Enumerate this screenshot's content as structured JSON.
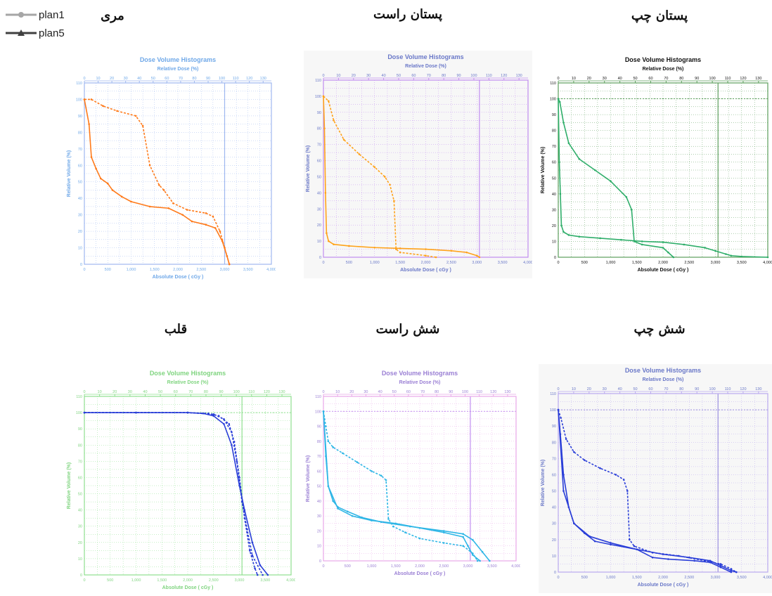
{
  "legend": [
    {
      "label": "plan1",
      "color": "#a6a6a6",
      "marker": "circle"
    },
    {
      "label": "plan5",
      "color": "#404040",
      "marker": "triangle"
    }
  ],
  "panel_text": {
    "title": "Dose Volume Histograms",
    "top_axis_label": "Relative Dose (%)",
    "bottom_axis_label": "Absolute Dose ( cGy )",
    "y_axis_label": "Relative Volume (%)"
  },
  "chart_data": [
    {
      "type": "line",
      "organ": "مری",
      "colors": {
        "frame": "#9fb8ef",
        "text": "#6fa8e8",
        "curve": "#ff7a1a",
        "ref": "#9fb8ef"
      },
      "xlim": [
        0,
        4000
      ],
      "ylim": [
        0,
        110
      ],
      "x_ticks": [
        0,
        500,
        1000,
        1500,
        2000,
        2500,
        3000,
        3500,
        4000
      ],
      "x_tick_labels": [
        "0",
        "500",
        "1,000",
        "1,500",
        "2,000",
        "2,500",
        "3,000",
        "3,500",
        "4,000"
      ],
      "y_ticks": [
        0,
        10,
        20,
        30,
        40,
        50,
        60,
        70,
        80,
        90,
        100,
        110
      ],
      "y_tick_labels": [
        "0",
        "10",
        "20",
        "30",
        "40",
        "50",
        "60",
        "70",
        "80",
        "90",
        "100",
        "110"
      ],
      "rel_ticks": [
        "0",
        "10",
        "20",
        "30",
        "40",
        "50",
        "60",
        "70",
        "80",
        "90",
        "100",
        "110",
        "120",
        "130"
      ],
      "ref_x": 3000,
      "ref_y": null,
      "series": [
        {
          "style": "dashed",
          "x": [
            0,
            150,
            400,
            700,
            1100,
            1250,
            1400,
            1600,
            1700,
            1900,
            2200,
            2600,
            2750,
            2900,
            3000,
            3100
          ],
          "y": [
            100,
            100,
            96,
            93,
            90,
            84,
            60,
            48,
            45,
            37,
            33,
            31,
            29,
            20,
            10,
            0
          ]
        },
        {
          "style": "solid",
          "x": [
            0,
            100,
            150,
            250,
            350,
            500,
            600,
            800,
            1000,
            1400,
            1800,
            2100,
            2300,
            2600,
            2800,
            2950,
            3050,
            3100
          ],
          "y": [
            100,
            85,
            65,
            58,
            52,
            49,
            45,
            41,
            38,
            35,
            34,
            30,
            26,
            24,
            22,
            14,
            5,
            0
          ]
        }
      ]
    },
    {
      "type": "line",
      "organ": "پستان راست",
      "colors": {
        "frame": "#c18df0",
        "text": "#6a78c8",
        "curve": "#ffa21a",
        "ref": "#c18df0"
      },
      "xlim": [
        0,
        4000
      ],
      "ylim": [
        0,
        110
      ],
      "x_ticks": [
        0,
        500,
        1000,
        1500,
        2000,
        2500,
        3000,
        3500,
        4000
      ],
      "x_tick_labels": [
        "0",
        "500",
        "1,000",
        "1,500",
        "2,000",
        "2,500",
        "3,000",
        "3,500",
        "4,000"
      ],
      "y_ticks": [
        0,
        10,
        20,
        30,
        40,
        50,
        60,
        70,
        80,
        90,
        100,
        110
      ],
      "y_tick_labels": [
        "0",
        "10",
        "20",
        "30",
        "40",
        "50",
        "60",
        "70",
        "80",
        "90",
        "100",
        "110"
      ],
      "rel_ticks": [
        "0",
        "10",
        "20",
        "30",
        "40",
        "50",
        "60",
        "70",
        "80",
        "90",
        "100",
        "110",
        "120",
        "130"
      ],
      "ref_x": 3050,
      "ref_y": null,
      "series": [
        {
          "style": "dashed",
          "x": [
            0,
            100,
            200,
            400,
            700,
            1000,
            1200,
            1300,
            1380,
            1420,
            1500,
            2000,
            2200
          ],
          "y": [
            100,
            97,
            85,
            73,
            64,
            56,
            50,
            45,
            35,
            5,
            3,
            1,
            0
          ]
        },
        {
          "style": "solid",
          "x": [
            0,
            20,
            40,
            60,
            100,
            200,
            500,
            1000,
            1500,
            2000,
            2500,
            2800,
            3000,
            3050
          ],
          "y": [
            100,
            80,
            40,
            15,
            10,
            8,
            7,
            6,
            5.5,
            5,
            4,
            3,
            1,
            0
          ]
        }
      ]
    },
    {
      "type": "line",
      "organ": "پستان چپ",
      "colors": {
        "frame": "#5c9e5c",
        "text": "#111111",
        "curve": "#2fae6a",
        "ref": "#5c9e5c"
      },
      "xlim": [
        0,
        4000
      ],
      "ylim": [
        0,
        110
      ],
      "x_ticks": [
        0,
        500,
        1000,
        1500,
        2000,
        2500,
        3000,
        3500,
        4000
      ],
      "x_tick_labels": [
        "0",
        "500",
        "1,000",
        "1,500",
        "2,000",
        "2,500",
        "3,000",
        "3,500",
        "4,000"
      ],
      "y_ticks": [
        0,
        10,
        20,
        30,
        40,
        50,
        60,
        70,
        80,
        90,
        100,
        110
      ],
      "y_tick_labels": [
        "0",
        "10",
        "20",
        "30",
        "40",
        "50",
        "60",
        "70",
        "80",
        "90",
        "100",
        "110"
      ],
      "rel_ticks": [
        "0",
        "10",
        "20",
        "30",
        "40",
        "50",
        "60",
        "70",
        "80",
        "90",
        "100",
        "110",
        "120",
        "130"
      ],
      "ref_x": 3050,
      "ref_y": 100,
      "series": [
        {
          "style": "solid",
          "x": [
            0,
            30,
            100,
            200,
            400,
            700,
            1000,
            1300,
            1400,
            1450,
            1600,
            2000,
            2100,
            2200
          ],
          "y": [
            100,
            98,
            85,
            72,
            62,
            55,
            48,
            38,
            30,
            10,
            8,
            6,
            3,
            0
          ]
        },
        {
          "style": "solid",
          "x": [
            0,
            20,
            40,
            60,
            100,
            200,
            400,
            800,
            1200,
            1600,
            2000,
            2400,
            2800,
            3000,
            3200,
            3300,
            3500,
            4000
          ],
          "y": [
            100,
            60,
            40,
            20,
            16,
            14,
            13,
            12,
            11,
            10,
            9.5,
            8,
            6,
            4,
            2,
            1,
            0.5,
            0
          ]
        }
      ]
    },
    {
      "type": "line",
      "organ": "قلب",
      "colors": {
        "frame": "#8fe08f",
        "text": "#7fd47f",
        "curve": "#2a3ed8",
        "ref": "#8fe08f"
      },
      "xlim": [
        0,
        4000
      ],
      "ylim": [
        0,
        110
      ],
      "x_ticks": [
        0,
        500,
        1000,
        1500,
        2000,
        2500,
        3000,
        3500,
        4000
      ],
      "x_tick_labels": [
        "0",
        "500",
        "1,000",
        "1,500",
        "2,000",
        "2,500",
        "3,000",
        "3,500",
        "4,000"
      ],
      "y_ticks": [
        0,
        10,
        20,
        30,
        40,
        50,
        60,
        70,
        80,
        90,
        100,
        110
      ],
      "y_tick_labels": [
        "0",
        "10",
        "20",
        "30",
        "40",
        "50",
        "60",
        "70",
        "80",
        "90",
        "100",
        "110"
      ],
      "rel_ticks": [
        "0",
        "10",
        "20",
        "30",
        "40",
        "50",
        "60",
        "70",
        "80",
        "90",
        "100",
        "110",
        "120",
        "130"
      ],
      "ref_x": 3050,
      "ref_y": 100,
      "series": [
        {
          "style": "dashed",
          "x": [
            0,
            1000,
            2000,
            2400,
            2600,
            2800,
            2900,
            3000,
            3100,
            3200,
            3300,
            3350
          ],
          "y": [
            100,
            100,
            100,
            99.5,
            98,
            93,
            82,
            60,
            35,
            15,
            4,
            0
          ]
        },
        {
          "style": "solid",
          "x": [
            0,
            1000,
            2000,
            2300,
            2500,
            2700,
            2850,
            3000,
            3100,
            3250,
            3400,
            3550
          ],
          "y": [
            100,
            100,
            100,
            99.5,
            98,
            93,
            80,
            55,
            40,
            20,
            6,
            0
          ]
        },
        {
          "style": "dashed",
          "x": [
            0,
            2000,
            2500,
            2700,
            2850,
            2950,
            3050,
            3150,
            3250,
            3450
          ],
          "y": [
            100,
            100,
            99,
            96,
            88,
            70,
            45,
            28,
            12,
            0
          ]
        }
      ]
    },
    {
      "type": "line",
      "organ": "شش راست",
      "colors": {
        "frame": "#e9a8e9",
        "text": "#9a7fd4",
        "curve": "#2fb6e6",
        "ref": "#c18df0"
      },
      "xlim": [
        0,
        4000
      ],
      "ylim": [
        0,
        110
      ],
      "x_ticks": [
        0,
        500,
        1000,
        1500,
        2000,
        2500,
        3000,
        3500,
        4000
      ],
      "x_tick_labels": [
        "0",
        "500",
        "1,000",
        "1,500",
        "2,000",
        "2,500",
        "3,000",
        "3,500",
        "4,000"
      ],
      "y_ticks": [
        0,
        10,
        20,
        30,
        40,
        50,
        60,
        70,
        80,
        90,
        100,
        110
      ],
      "y_tick_labels": [
        "0",
        "10",
        "20",
        "30",
        "40",
        "50",
        "60",
        "70",
        "80",
        "90",
        "100",
        "110"
      ],
      "rel_ticks": [
        "0",
        "10",
        "20",
        "30",
        "40",
        "50",
        "60",
        "70",
        "80",
        "90",
        "100",
        "110",
        "120",
        "130"
      ],
      "ref_x": 3050,
      "ref_y": 100,
      "series": [
        {
          "style": "dashed",
          "x": [
            0,
            50,
            100,
            200,
            400,
            700,
            1000,
            1200,
            1300,
            1350,
            1450,
            1700,
            2000,
            2500,
            2900,
            3100,
            3200
          ],
          "y": [
            100,
            90,
            80,
            76,
            72,
            66,
            60,
            57,
            54,
            28,
            23,
            19,
            15,
            12,
            10,
            5,
            0
          ]
        },
        {
          "style": "solid",
          "x": [
            0,
            50,
            100,
            200,
            300,
            500,
            800,
            1200,
            1800,
            2500,
            2900,
            3100,
            3300,
            3450
          ],
          "y": [
            100,
            70,
            50,
            40,
            36,
            33,
            29,
            26,
            23,
            20,
            18,
            14,
            6,
            0
          ]
        },
        {
          "style": "solid",
          "x": [
            0,
            100,
            300,
            600,
            1000,
            1500,
            2000,
            2500,
            2900,
            3000,
            3100,
            3250
          ],
          "y": [
            100,
            50,
            35,
            30,
            27,
            25,
            22,
            19,
            16,
            10,
            4,
            0
          ]
        }
      ]
    },
    {
      "type": "line",
      "organ": "شش چپ",
      "colors": {
        "frame": "#b9a9ef",
        "text": "#6a78c8",
        "curve": "#2a3ed8",
        "ref": "#9b8fe0"
      },
      "xlim": [
        0,
        4000
      ],
      "ylim": [
        0,
        110
      ],
      "x_ticks": [
        0,
        500,
        1000,
        1500,
        2000,
        2500,
        3000,
        3500,
        4000
      ],
      "x_tick_labels": [
        "0",
        "500",
        "1,000",
        "1,500",
        "2,000",
        "2,500",
        "3,000",
        "3,500",
        "4,000"
      ],
      "y_ticks": [
        0,
        10,
        20,
        30,
        40,
        50,
        60,
        70,
        80,
        90,
        100,
        110
      ],
      "y_tick_labels": [
        "0",
        "10",
        "20",
        "30",
        "40",
        "50",
        "60",
        "70",
        "80",
        "90",
        "100",
        "110"
      ],
      "rel_ticks": [
        "0",
        "10",
        "20",
        "30",
        "40",
        "50",
        "60",
        "70",
        "80",
        "90",
        "100",
        "110",
        "120",
        "130"
      ],
      "ref_x": 3050,
      "ref_y": 100,
      "series": [
        {
          "style": "dashed",
          "x": [
            0,
            50,
            150,
            300,
            500,
            800,
            1100,
            1250,
            1320,
            1360,
            1450,
            1800,
            2300,
            2800,
            3100,
            3300,
            3400
          ],
          "y": [
            100,
            95,
            82,
            74,
            69,
            64,
            60,
            57,
            50,
            20,
            16,
            12,
            10,
            7,
            5,
            2,
            0
          ]
        },
        {
          "style": "solid",
          "x": [
            0,
            40,
            100,
            200,
            300,
            500,
            700,
            1000,
            1500,
            2000,
            2500,
            2900,
            3100,
            3300,
            3400
          ],
          "y": [
            100,
            85,
            60,
            40,
            30,
            24,
            19,
            17,
            14,
            11,
            9,
            7,
            4,
            1,
            0
          ]
        },
        {
          "style": "solid",
          "x": [
            0,
            100,
            300,
            600,
            1000,
            1500,
            1800,
            2100,
            2600,
            2900,
            3100,
            3300
          ],
          "y": [
            100,
            50,
            30,
            22,
            18,
            14,
            9,
            8,
            7,
            6,
            3,
            0
          ]
        }
      ]
    }
  ]
}
